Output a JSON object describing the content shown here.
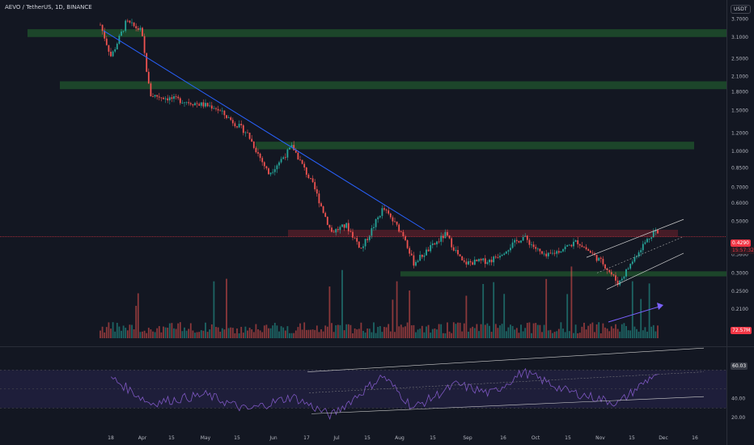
{
  "header": {
    "symbol": "AEVO / TetherUS, 1D, BINANCE",
    "currency": "USDT"
  },
  "price_labels": {
    "last_price": "0.4290",
    "countdown": "15:57:32",
    "volume": "72.57M",
    "rsi": "60.03"
  },
  "colors": {
    "background": "#131722",
    "up": "#26a69a",
    "down": "#ef5350",
    "trendline": "#2962ff",
    "support_zone": "#1e4d2b",
    "resistance_zone": "#5c1f2a",
    "rsi_band": "#1e1e3a",
    "rsi_line": "#7e57c2"
  },
  "chart_data": {
    "type": "candlestick",
    "title": "AEVO / TetherUS, 1D, BINANCE",
    "y_scale": "log",
    "price_ticks": [
      "3.7000",
      "3.1000",
      "2.5000",
      "2.1000",
      "1.8000",
      "1.5000",
      "1.2000",
      "1.0000",
      "0.8500",
      "0.7000",
      "0.6000",
      "0.5000",
      "0.4290",
      "0.3600",
      "0.3000",
      "0.2500",
      "0.2100"
    ],
    "x_ticks": [
      "18",
      "Apr",
      "15",
      "May",
      "15",
      "Jun",
      "17",
      "Jul",
      "15",
      "Aug",
      "15",
      "Sep",
      "16",
      "Oct",
      "15",
      "Nov",
      "15",
      "Dec",
      "16"
    ],
    "rsi_ticks": [
      "60.03",
      "40.00",
      "20.00"
    ],
    "price_path": [
      {
        "x": "Mar 13",
        "y": 3.5
      },
      {
        "x": "Mar 18",
        "y": 2.55
      },
      {
        "x": "Mar 25",
        "y": 3.6
      },
      {
        "x": "Apr 1",
        "y": 3.3
      },
      {
        "x": "Apr 5",
        "y": 1.75
      },
      {
        "x": "Apr 20",
        "y": 1.65
      },
      {
        "x": "May 5",
        "y": 1.55
      },
      {
        "x": "May 20",
        "y": 1.2
      },
      {
        "x": "May 30",
        "y": 0.8
      },
      {
        "x": "Jun 10",
        "y": 1.05
      },
      {
        "x": "Jun 20",
        "y": 0.7
      },
      {
        "x": "Jun 28",
        "y": 0.45
      },
      {
        "x": "Jul 5",
        "y": 0.48
      },
      {
        "x": "Jul 12",
        "y": 0.38
      },
      {
        "x": "Jul 22",
        "y": 0.57
      },
      {
        "x": "Aug 1",
        "y": 0.43
      },
      {
        "x": "Aug 5",
        "y": 0.33
      },
      {
        "x": "Aug 20",
        "y": 0.44
      },
      {
        "x": "Aug 28",
        "y": 0.33
      },
      {
        "x": "Sep 10",
        "y": 0.34
      },
      {
        "x": "Sep 25",
        "y": 0.43
      },
      {
        "x": "Oct 5",
        "y": 0.35
      },
      {
        "x": "Oct 20",
        "y": 0.41
      },
      {
        "x": "Nov 1",
        "y": 0.33
      },
      {
        "x": "Nov 8",
        "y": 0.27
      },
      {
        "x": "Nov 18",
        "y": 0.38
      },
      {
        "x": "Nov 25",
        "y": 0.46
      },
      {
        "x": "Nov 27",
        "y": 0.429
      }
    ],
    "zones": [
      {
        "type": "support",
        "from": 3.1,
        "to": 3.35
      },
      {
        "type": "support",
        "from": 1.85,
        "to": 2.0
      },
      {
        "type": "support",
        "from": 1.02,
        "to": 1.1
      },
      {
        "type": "resistance",
        "from": 0.43,
        "to": 0.46
      },
      {
        "type": "support",
        "from": 0.29,
        "to": 0.305
      }
    ],
    "rsi": [
      {
        "x": "Mar 18",
        "y": 62
      },
      {
        "x": "Apr 5",
        "y": 35
      },
      {
        "x": "May 1",
        "y": 44
      },
      {
        "x": "May 20",
        "y": 28
      },
      {
        "x": "Jun 10",
        "y": 42
      },
      {
        "x": "Jun 28",
        "y": 22
      },
      {
        "x": "Jul 22",
        "y": 64
      },
      {
        "x": "Aug 5",
        "y": 30
      },
      {
        "x": "Aug 25",
        "y": 55
      },
      {
        "x": "Sep 10",
        "y": 45
      },
      {
        "x": "Sep 25",
        "y": 68
      },
      {
        "x": "Oct 15",
        "y": 48
      },
      {
        "x": "Nov 8",
        "y": 35
      },
      {
        "x": "Nov 25",
        "y": 66
      },
      {
        "x": "Nov 27",
        "y": 60.03
      }
    ]
  }
}
